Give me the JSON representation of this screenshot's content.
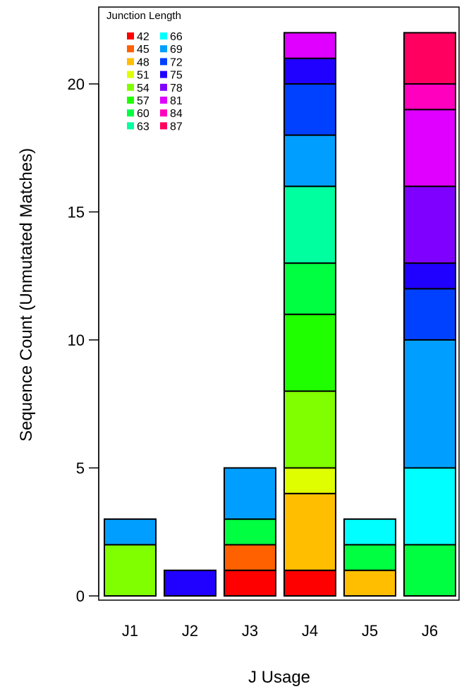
{
  "chart_data": {
    "type": "bar",
    "stacked": true,
    "xlabel": "J Usage",
    "ylabel": "Sequence Count (Unmutated Matches)",
    "categories": [
      "J1",
      "J2",
      "J3",
      "J4",
      "J5",
      "J6"
    ],
    "yticks": [
      0,
      5,
      10,
      15,
      20
    ],
    "ylim": [
      0,
      22
    ],
    "legend": {
      "title": "Junction Length",
      "position": "top-left",
      "entries": [
        {
          "label": "42",
          "color": "#ff0000"
        },
        {
          "label": "45",
          "color": "#ff6000"
        },
        {
          "label": "48",
          "color": "#ffbf00"
        },
        {
          "label": "51",
          "color": "#dfff00"
        },
        {
          "label": "54",
          "color": "#80ff00"
        },
        {
          "label": "57",
          "color": "#20ff00"
        },
        {
          "label": "60",
          "color": "#00ff40"
        },
        {
          "label": "63",
          "color": "#00ff9f"
        },
        {
          "label": "66",
          "color": "#00ffff"
        },
        {
          "label": "69",
          "color": "#009fff"
        },
        {
          "label": "72",
          "color": "#0040ff"
        },
        {
          "label": "75",
          "color": "#2000ff"
        },
        {
          "label": "78",
          "color": "#8000ff"
        },
        {
          "label": "81",
          "color": "#df00ff"
        },
        {
          "label": "84",
          "color": "#ff00bf"
        },
        {
          "label": "87",
          "color": "#ff0060"
        }
      ]
    },
    "bars": [
      {
        "category": "J1",
        "segments": [
          {
            "length": "54",
            "count": 2
          },
          {
            "length": "69",
            "count": 1
          }
        ]
      },
      {
        "category": "J2",
        "segments": [
          {
            "length": "75",
            "count": 1
          }
        ]
      },
      {
        "category": "J3",
        "segments": [
          {
            "length": "42",
            "count": 1
          },
          {
            "length": "45",
            "count": 1
          },
          {
            "length": "60",
            "count": 1
          },
          {
            "length": "69",
            "count": 2
          }
        ]
      },
      {
        "category": "J4",
        "segments": [
          {
            "length": "42",
            "count": 1
          },
          {
            "length": "48",
            "count": 3
          },
          {
            "length": "51",
            "count": 1
          },
          {
            "length": "54",
            "count": 3
          },
          {
            "length": "57",
            "count": 3
          },
          {
            "length": "60",
            "count": 2
          },
          {
            "length": "63",
            "count": 3
          },
          {
            "length": "69",
            "count": 2
          },
          {
            "length": "72",
            "count": 2
          },
          {
            "length": "75",
            "count": 1
          },
          {
            "length": "81",
            "count": 1
          }
        ]
      },
      {
        "category": "J5",
        "segments": [
          {
            "length": "48",
            "count": 1
          },
          {
            "length": "60",
            "count": 1
          },
          {
            "length": "66",
            "count": 1
          }
        ]
      },
      {
        "category": "J6",
        "segments": [
          {
            "length": "60",
            "count": 2
          },
          {
            "length": "66",
            "count": 3
          },
          {
            "length": "69",
            "count": 5
          },
          {
            "length": "72",
            "count": 2
          },
          {
            "length": "75",
            "count": 1
          },
          {
            "length": "78",
            "count": 3
          },
          {
            "length": "81",
            "count": 3
          },
          {
            "length": "84",
            "count": 1
          },
          {
            "length": "87",
            "count": 2
          }
        ]
      }
    ]
  }
}
